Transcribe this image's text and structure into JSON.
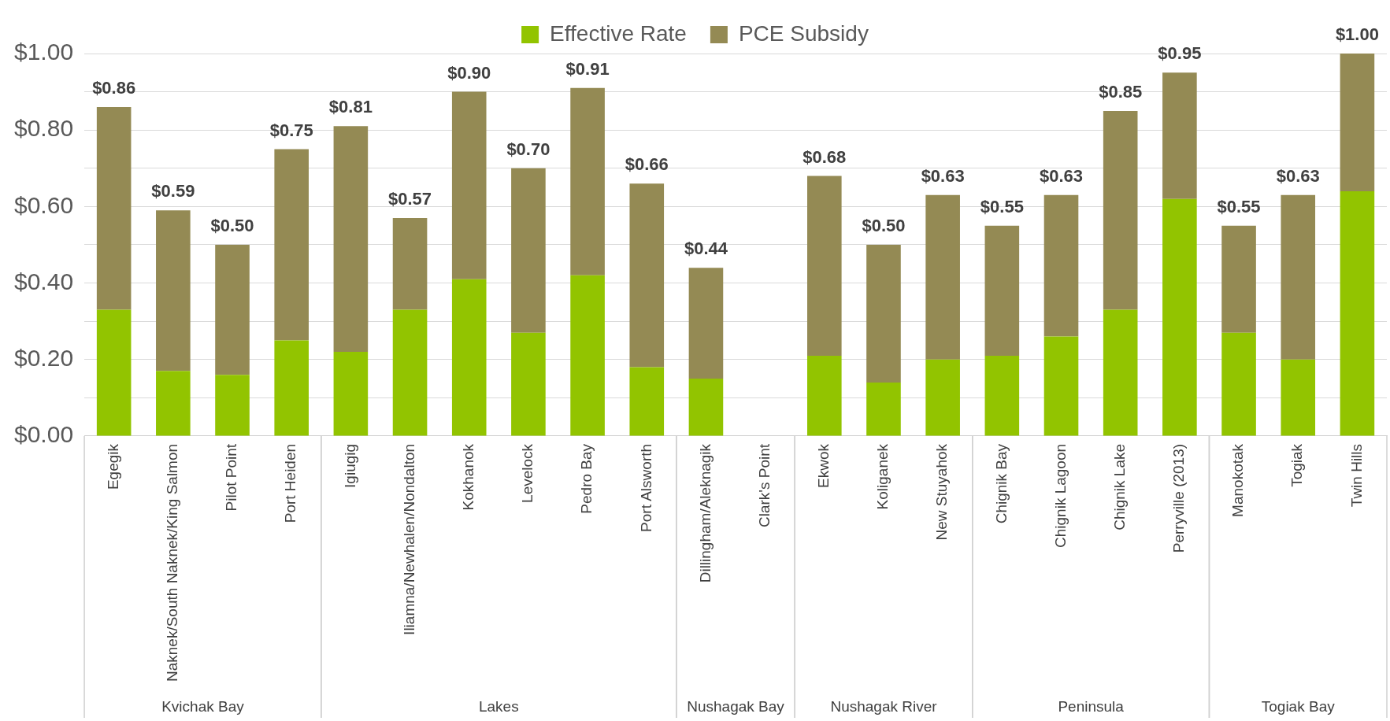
{
  "chart_data": {
    "type": "bar",
    "stacked": true,
    "categories": [
      "Egegik",
      "Naknek/South Naknek/King Salmon",
      "Pilot Point",
      "Port Heiden",
      "Igiugig",
      "Iliamna/Newhalen/Nondalton",
      "Kokhanok",
      "Levelock",
      "Pedro Bay",
      "Port Alsworth",
      "Dillingham/Aleknagik",
      "Clark's Point",
      "Ekwok",
      "Koliganek",
      "New Stuyahok",
      "Chignik Bay",
      "Chignik Lagoon",
      "Chignik Lake",
      "Perryville (2013)",
      "Manokotak",
      "Togiak",
      "Twin Hills"
    ],
    "series": [
      {
        "name": "Effective Rate",
        "color": "#92c400",
        "values": [
          0.33,
          0.17,
          0.16,
          0.25,
          0.22,
          0.33,
          0.41,
          0.27,
          0.42,
          0.18,
          0.15,
          null,
          0.21,
          0.14,
          0.2,
          0.21,
          0.26,
          0.33,
          0.62,
          0.27,
          0.2,
          0.64
        ]
      },
      {
        "name": "PCE Subsidy",
        "color": "#948a54",
        "values": [
          0.53,
          0.42,
          0.34,
          0.5,
          0.59,
          0.24,
          0.49,
          0.43,
          0.49,
          0.48,
          0.29,
          null,
          0.47,
          0.36,
          0.43,
          0.34,
          0.37,
          0.52,
          0.33,
          0.28,
          0.43,
          0.36
        ]
      }
    ],
    "totals": [
      "$0.86",
      "$0.59",
      "$0.50",
      "$0.75",
      "$0.81",
      "$0.57",
      "$0.90",
      "$0.70",
      "$0.91",
      "$0.66",
      "$0.44",
      null,
      "$0.68",
      "$0.50",
      "$0.63",
      "$0.55",
      "$0.63",
      "$0.85",
      "$0.95",
      "$0.55",
      "$0.63",
      "$1.00"
    ],
    "ylim": [
      0,
      1
    ],
    "yticks": [
      {
        "value": 0,
        "label": "$0.00"
      },
      {
        "value": 0.1,
        "label": null
      },
      {
        "value": 0.2,
        "label": "$0.20"
      },
      {
        "value": 0.3,
        "label": null
      },
      {
        "value": 0.4,
        "label": "$0.40"
      },
      {
        "value": 0.5,
        "label": null
      },
      {
        "value": 0.6,
        "label": "$0.60"
      },
      {
        "value": 0.7,
        "label": null
      },
      {
        "value": 0.8,
        "label": "$0.80"
      },
      {
        "value": 0.9,
        "label": null
      },
      {
        "value": 1,
        "label": "$1.00"
      }
    ],
    "grid": "y",
    "legend": "top",
    "annotations": [
      "Kvichak Bay",
      "Lakes",
      "Nushagak Bay",
      "Nushagak River",
      "Peninsula",
      "Togiak Bay"
    ]
  }
}
